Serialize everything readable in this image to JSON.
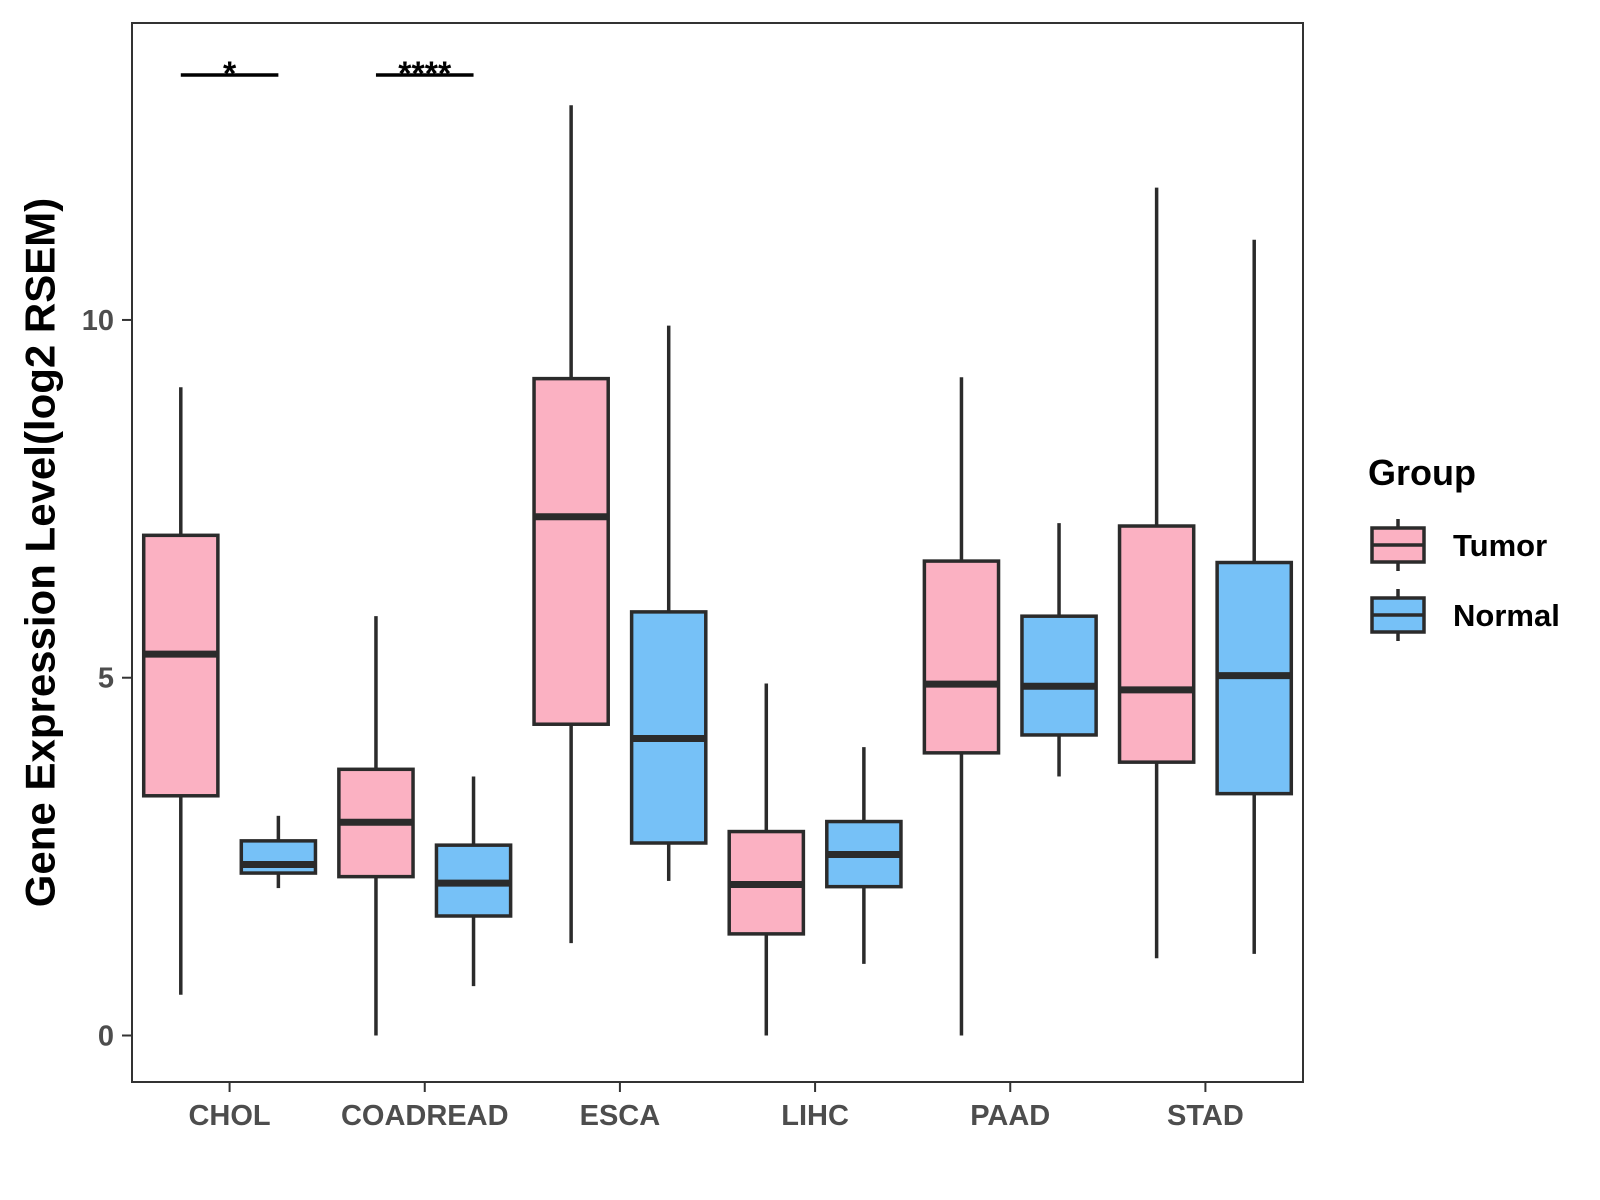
{
  "chart_data": {
    "type": "boxplot",
    "title": "",
    "xlabel": "",
    "ylabel": "Gene Expression Level(log2 RSEM)",
    "ylim": [
      -0.65,
      14.15
    ],
    "yticks": [
      0,
      5,
      10
    ],
    "ytick_labels": [
      "0",
      "5",
      "10"
    ],
    "grid": false,
    "categories": [
      "CHOL",
      "COADREAD",
      "ESCA",
      "LIHC",
      "PAAD",
      "STAD"
    ],
    "legend": {
      "title": "Group",
      "position": "right",
      "entries": [
        "Tumor",
        "Normal"
      ]
    },
    "colors": {
      "Tumor": "#FBB1C2",
      "Normal": "#76C1F7",
      "outline": "#2b2b2b"
    },
    "series": [
      {
        "name": "Tumor",
        "boxes": [
          {
            "min": 0.57,
            "q1": 3.35,
            "median": 5.33,
            "q3": 6.99,
            "max": 9.06
          },
          {
            "min": 0.0,
            "q1": 2.22,
            "median": 2.98,
            "q3": 3.72,
            "max": 5.86
          },
          {
            "min": 1.29,
            "q1": 4.35,
            "median": 7.25,
            "q3": 9.18,
            "max": 13.0
          },
          {
            "min": 0.0,
            "q1": 1.42,
            "median": 2.11,
            "q3": 2.85,
            "max": 4.92
          },
          {
            "min": 0.0,
            "q1": 3.95,
            "median": 4.91,
            "q3": 6.63,
            "max": 9.2
          },
          {
            "min": 1.08,
            "q1": 3.82,
            "median": 4.83,
            "q3": 7.12,
            "max": 11.85
          }
        ]
      },
      {
        "name": "Normal",
        "boxes": [
          {
            "min": 2.06,
            "q1": 2.27,
            "median": 2.39,
            "q3": 2.72,
            "max": 3.07
          },
          {
            "min": 0.69,
            "q1": 1.67,
            "median": 2.13,
            "q3": 2.66,
            "max": 3.62
          },
          {
            "min": 2.16,
            "q1": 2.69,
            "median": 4.15,
            "q3": 5.92,
            "max": 9.92
          },
          {
            "min": 1.0,
            "q1": 2.08,
            "median": 2.53,
            "q3": 2.99,
            "max": 4.03
          },
          {
            "min": 3.62,
            "q1": 4.2,
            "median": 4.88,
            "q3": 5.86,
            "max": 7.16
          },
          {
            "min": 1.14,
            "q1": 3.38,
            "median": 5.03,
            "q3": 6.61,
            "max": 11.12
          }
        ]
      }
    ],
    "significance": [
      {
        "category": "CHOL",
        "label": "*"
      },
      {
        "category": "COADREAD",
        "label": "****"
      }
    ]
  }
}
